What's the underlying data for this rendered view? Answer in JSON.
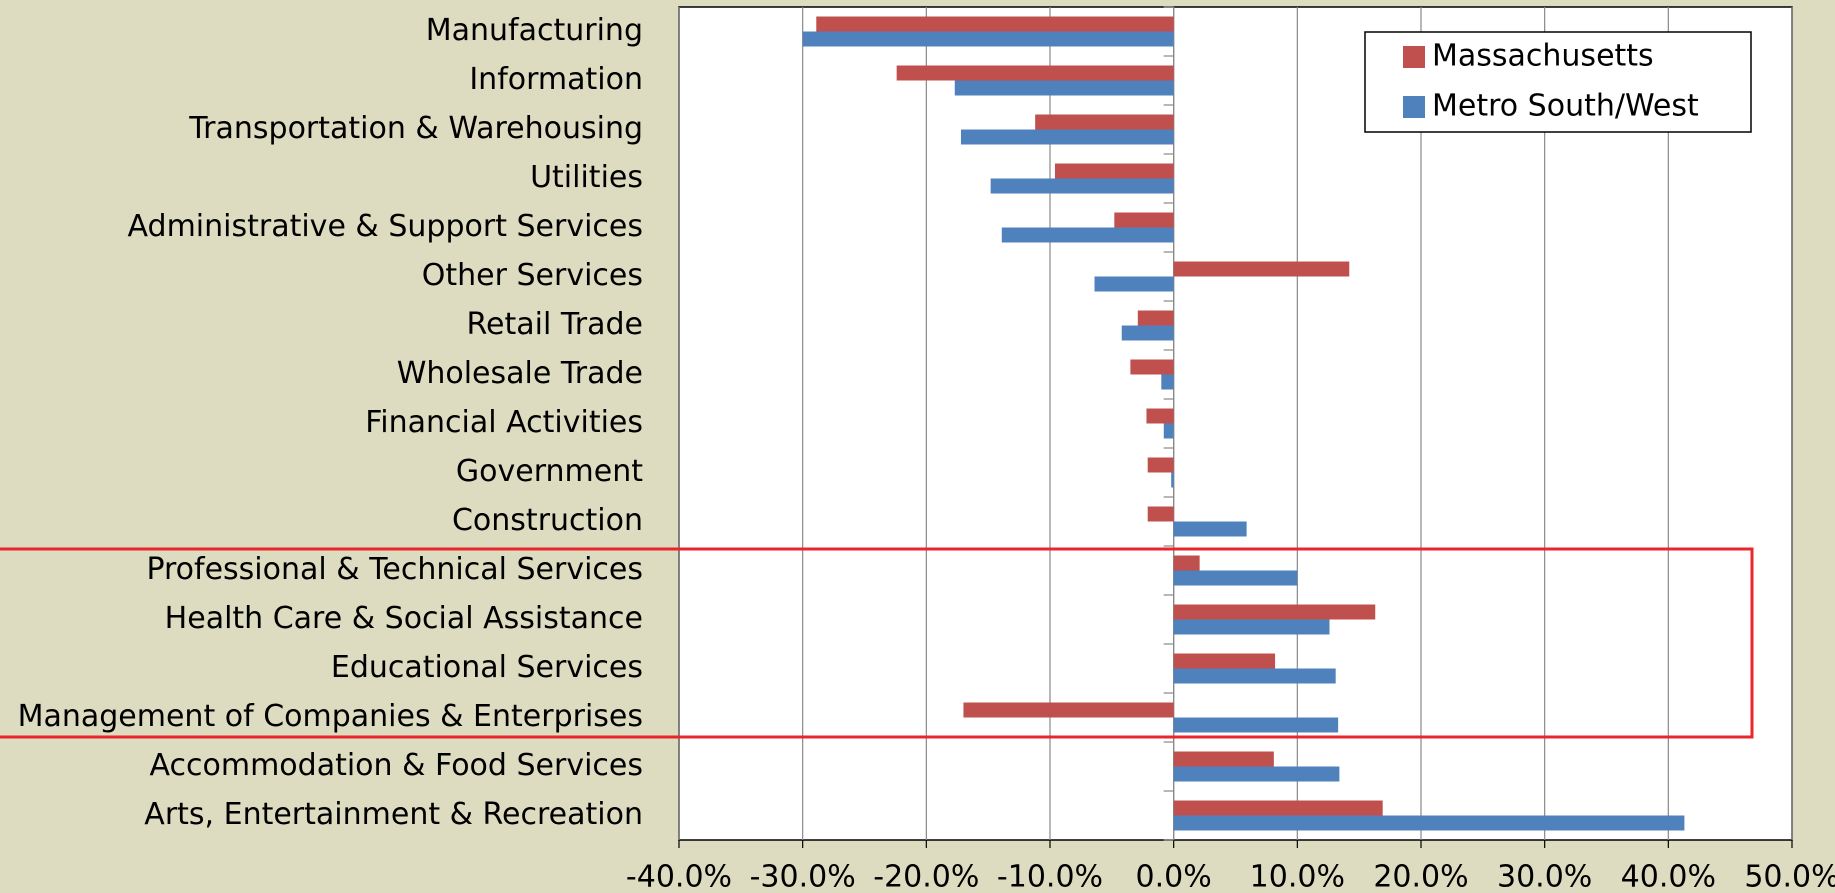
{
  "chart_data": {
    "type": "hbar",
    "categories": [
      "Manufacturing",
      "Information",
      "Transportation & Warehousing",
      "Utilities",
      "Administrative & Support Services",
      "Other Services",
      "Retail Trade",
      "Wholesale Trade",
      "Financial Activities",
      "Government",
      "Construction",
      "Professional & Technical Services",
      "Health Care & Social Assistance",
      "Educational Services",
      "Management of Companies & Enterprises",
      "Accommodation & Food Services",
      "Arts, Entertainment & Recreation"
    ],
    "series": [
      {
        "name": "Massachusetts",
        "color": "#c0504d",
        "values": [
          -28.9,
          -22.4,
          -11.2,
          -9.6,
          -4.8,
          14.2,
          -2.9,
          -3.5,
          -2.2,
          -2.1,
          -2.1,
          2.1,
          16.3,
          8.2,
          -17.0,
          8.1,
          16.9
        ]
      },
      {
        "name": "Metro South/West",
        "color": "#4f81bd",
        "values": [
          -30.0,
          -17.7,
          -17.2,
          -14.8,
          -13.9,
          -6.4,
          -4.2,
          -1.0,
          -0.8,
          -0.2,
          5.9,
          10.0,
          12.6,
          13.1,
          13.3,
          13.4,
          41.3
        ]
      }
    ],
    "xlim": [
      -40,
      50
    ],
    "xticks": [
      {
        "value": -40,
        "label": "-40.0%"
      },
      {
        "value": -30,
        "label": "-30.0%"
      },
      {
        "value": -20,
        "label": "-20.0%"
      },
      {
        "value": -10,
        "label": "-10.0%"
      },
      {
        "value": 0,
        "label": "0.0%"
      },
      {
        "value": 10,
        "label": "10.0%"
      },
      {
        "value": 20,
        "label": "20.0%"
      },
      {
        "value": 30,
        "label": "30.0%"
      },
      {
        "value": 40,
        "label": "40.0%"
      },
      {
        "value": 50,
        "label": "50.0%"
      }
    ],
    "grid": true,
    "legend": "upper right"
  }
}
